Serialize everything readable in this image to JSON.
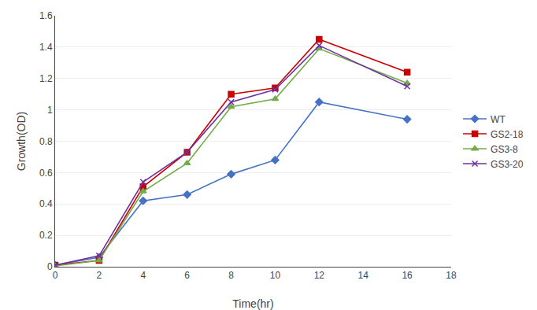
{
  "chart_data": {
    "type": "line",
    "xlabel": "Time(hr)",
    "ylabel": "Growth(OD)",
    "xlim": [
      0,
      18
    ],
    "ylim": [
      0,
      1.6
    ],
    "xticks": [
      0,
      2,
      4,
      6,
      8,
      10,
      12,
      14,
      16,
      18
    ],
    "yticks": [
      0,
      0.2,
      0.4,
      0.6,
      0.8,
      1,
      1.2,
      1.4,
      1.6
    ],
    "grid": "y",
    "legend": "right",
    "series": [
      {
        "name": "WT",
        "color": "#4472C4",
        "marker": "diamond",
        "x": [
          0,
          2,
          4,
          6,
          8,
          10,
          12,
          16
        ],
        "values": [
          0.01,
          0.06,
          0.42,
          0.46,
          0.59,
          0.68,
          1.05,
          0.94
        ]
      },
      {
        "name": "GS2-18",
        "color": "#CC0000",
        "marker": "square",
        "x": [
          0,
          2,
          4,
          6,
          8,
          10,
          12,
          16
        ],
        "values": [
          0.01,
          0.04,
          0.51,
          0.73,
          1.1,
          1.14,
          1.45,
          1.24
        ]
      },
      {
        "name": "GS3-8",
        "color": "#70AD47",
        "marker": "triangle-up",
        "x": [
          0,
          2,
          4,
          6,
          8,
          10,
          12,
          16
        ],
        "values": [
          0.005,
          0.04,
          0.48,
          0.66,
          1.02,
          1.07,
          1.39,
          1.17
        ]
      },
      {
        "name": "GS3-20",
        "color": "#7030A0",
        "marker": "x",
        "x": [
          0,
          2,
          4,
          6,
          8,
          10,
          12,
          16
        ],
        "values": [
          0.01,
          0.07,
          0.54,
          0.73,
          1.05,
          1.13,
          1.41,
          1.15
        ]
      }
    ]
  }
}
